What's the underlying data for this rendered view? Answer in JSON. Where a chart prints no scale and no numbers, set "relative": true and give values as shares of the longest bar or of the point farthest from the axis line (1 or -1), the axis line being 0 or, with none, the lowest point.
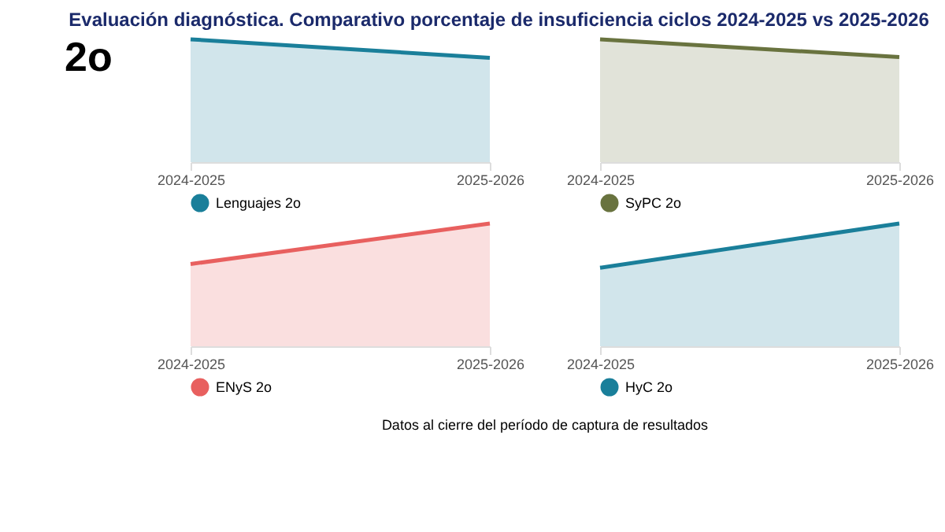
{
  "chart_data": [
    {
      "type": "area",
      "title": "Evaluación diagnóstica. Comparativo porcentaje de insuficiencia ciclos 2024-2025 vs 2025-2026",
      "annotations": [
        "2o"
      ],
      "categories": [
        "2024-2025",
        "2025-2026"
      ],
      "relative": true,
      "legend": "bottom",
      "grid": false,
      "series": [
        {
          "name": "Lenguajes 2o",
          "color": "#1a7f9a",
          "values": [
            1,
            0.85
          ]
        }
      ]
    },
    {
      "type": "area",
      "categories": [
        "2024-2025",
        "2025-2026"
      ],
      "relative": true,
      "legend": "bottom",
      "grid": false,
      "series": [
        {
          "name": "SyPC 2o",
          "color": "#69733f",
          "values": [
            1,
            0.855
          ]
        }
      ]
    },
    {
      "type": "area",
      "categories": [
        "2024-2025",
        "2025-2026"
      ],
      "relative": true,
      "legend": "bottom",
      "grid": false,
      "series": [
        {
          "name": "ENyS 2o",
          "color": "#e8605f",
          "values": [
            0.67,
            1
          ]
        }
      ]
    },
    {
      "type": "area",
      "categories": [
        "2024-2025",
        "2025-2026"
      ],
      "relative": true,
      "legend": "bottom",
      "grid": false,
      "annotations": [
        "Datos al cierre del período de captura de resultados"
      ],
      "series": [
        {
          "name": "HyC 2o",
          "color": "#1a7f9a",
          "values": [
            0.64,
            1
          ]
        }
      ]
    }
  ]
}
